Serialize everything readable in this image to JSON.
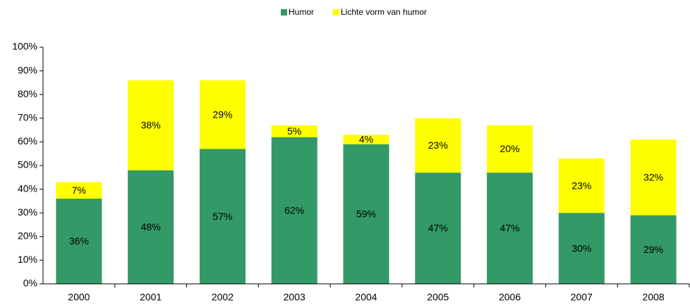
{
  "chart_data": {
    "type": "stacked_bar",
    "categories": [
      "2000",
      "2001",
      "2002",
      "2003",
      "2004",
      "2005",
      "2006",
      "2007",
      "2008"
    ],
    "series": [
      {
        "name": "Humor",
        "color": "#339966",
        "values": [
          36,
          48,
          57,
          62,
          59,
          47,
          47,
          30,
          29
        ],
        "value_labels": [
          "36%",
          "48%",
          "57%",
          "62%",
          "59%",
          "47%",
          "47%",
          "30%",
          "29%"
        ]
      },
      {
        "name": "Lichte vorm van humor",
        "color": "#ffff00",
        "values": [
          7,
          38,
          29,
          5,
          4,
          23,
          20,
          23,
          32
        ],
        "value_labels": [
          "7%",
          "38%",
          "29%",
          "5%",
          "4%",
          "23%",
          "20%",
          "23%",
          "32%"
        ]
      }
    ],
    "ylim": [
      0,
      100
    ],
    "yticks": [
      {
        "value": 0,
        "label": "0%"
      },
      {
        "value": 10,
        "label": "10%"
      },
      {
        "value": 20,
        "label": "20%"
      },
      {
        "value": 30,
        "label": "30%"
      },
      {
        "value": 40,
        "label": "40%"
      },
      {
        "value": 50,
        "label": "50%"
      },
      {
        "value": 60,
        "label": "60%"
      },
      {
        "value": 70,
        "label": "70%"
      },
      {
        "value": 80,
        "label": "80%"
      },
      {
        "value": 90,
        "label": "90%"
      },
      {
        "value": 100,
        "label": "100%"
      }
    ],
    "grid": false,
    "legend": "top"
  }
}
